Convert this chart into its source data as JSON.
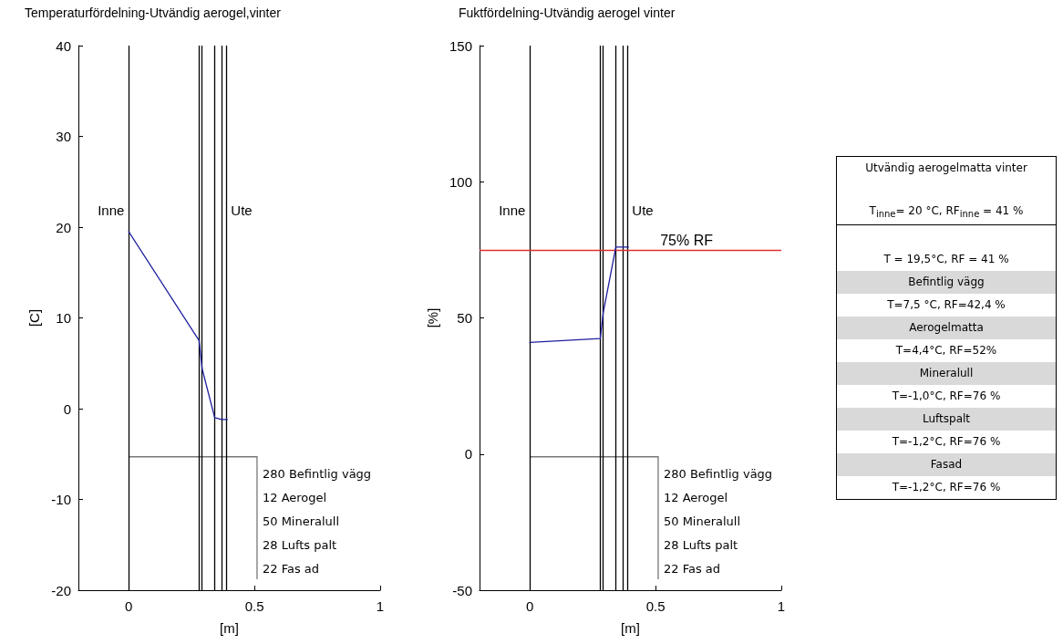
{
  "chart_data": [
    {
      "type": "line",
      "title": "Temperaturfördelning-Utvändig aerogel,vinter",
      "xlabel": "[m]",
      "ylabel": "[C]",
      "x": [
        0,
        0.28,
        0.292,
        0.342,
        0.37,
        0.392
      ],
      "series": [
        {
          "color": "#1f1fa0",
          "values": [
            19.5,
            7.5,
            4.4,
            -1.0,
            -1.2,
            -1.2
          ]
        }
      ],
      "xlim": [
        -0.2,
        1
      ],
      "xticks": [
        0,
        0.5,
        1
      ],
      "ylim": [
        -20,
        40
      ],
      "yticks": [
        -20,
        -10,
        0,
        10,
        20,
        30,
        40
      ],
      "grid": false,
      "marker": "none",
      "line_style": "solid",
      "ref_lines": [
        {
          "axis": "x",
          "value": 0,
          "color": "#000000"
        },
        {
          "axis": "x",
          "value": 0.28,
          "color": "#000000"
        },
        {
          "axis": "x",
          "value": 0.292,
          "color": "#000000"
        },
        {
          "axis": "x",
          "value": 0.342,
          "color": "#000000"
        },
        {
          "axis": "x",
          "value": 0.37,
          "color": "#000000"
        },
        {
          "axis": "x",
          "value": 0.392,
          "color": "#000000"
        }
      ],
      "annotations": [
        "Inne",
        "Ute",
        "280 Befintlig vägg",
        "12 Aerogel",
        "50 Mineralull",
        "28 Lufts palt",
        "22 Fas ad"
      ]
    },
    {
      "type": "line",
      "title": "Fuktfördelning-Utvändig aerogel vinter",
      "xlabel": "[m]",
      "ylabel": "[%]",
      "x": [
        0,
        0.28,
        0.292,
        0.342,
        0.37,
        0.392
      ],
      "series": [
        {
          "color": "#1f1fa0",
          "values": [
            41,
            42.4,
            52,
            76,
            76,
            76
          ]
        }
      ],
      "xlim": [
        -0.2,
        1
      ],
      "xticks": [
        0,
        0.5,
        1
      ],
      "ylim": [
        -50,
        150
      ],
      "yticks": [
        -50,
        0,
        50,
        100,
        150
      ],
      "grid": false,
      "marker": "none",
      "line_style": "solid",
      "ref_lines": [
        {
          "axis": "x",
          "value": 0,
          "color": "#000000"
        },
        {
          "axis": "x",
          "value": 0.28,
          "color": "#000000"
        },
        {
          "axis": "x",
          "value": 0.292,
          "color": "#000000"
        },
        {
          "axis": "x",
          "value": 0.342,
          "color": "#000000"
        },
        {
          "axis": "x",
          "value": 0.37,
          "color": "#000000"
        },
        {
          "axis": "x",
          "value": 0.392,
          "color": "#000000"
        },
        {
          "axis": "y",
          "value": 75,
          "label": "75% RF",
          "color": "#e03030"
        }
      ],
      "annotations": [
        "Inne",
        "Ute",
        "280 Befintlig vägg",
        "12 Aerogel",
        "50 Mineralull",
        "28 Lufts palt",
        "22 Fas ad"
      ]
    },
    {
      "type": "other",
      "title": "Utvändig aerogelmatta vinter",
      "annotations": [
        "T$_{inne}$= 20 °C, RF$_{inne}$ = 41 %",
        "T = 19,5°C, RF = 41 %",
        "Befintlig vägg",
        "T=7,5 °C, RF=42,4 %",
        "Aerogelmatta",
        "T=4,4°C, RF=52%",
        "Mineralull",
        "T=-1,0°C, RF=76 %",
        "Luftspalt",
        "T=-1,2°C, RF=76 %",
        "Fasad",
        "T=-1,2°C, RF=76 %"
      ]
    }
  ]
}
